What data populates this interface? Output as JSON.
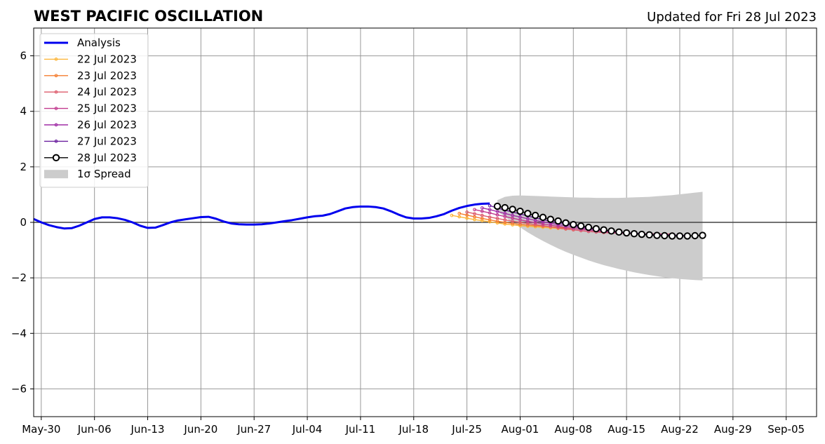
{
  "title": "WEST PACIFIC OSCILLATION",
  "subtitle": "Updated for Fri 28 Jul 2023",
  "chart_data": {
    "type": "line",
    "xlim": [
      "2023-05-29",
      "2023-09-09"
    ],
    "ylim": [
      -7,
      7
    ],
    "grid": true,
    "legend_position": "top-left",
    "x_ticks": [
      {
        "date": "2023-05-30",
        "label": "May-30"
      },
      {
        "date": "2023-06-06",
        "label": "Jun-06"
      },
      {
        "date": "2023-06-13",
        "label": "Jun-13"
      },
      {
        "date": "2023-06-20",
        "label": "Jun-20"
      },
      {
        "date": "2023-06-27",
        "label": "Jun-27"
      },
      {
        "date": "2023-07-04",
        "label": "Jul-04"
      },
      {
        "date": "2023-07-11",
        "label": "Jul-11"
      },
      {
        "date": "2023-07-18",
        "label": "Jul-18"
      },
      {
        "date": "2023-07-25",
        "label": "Jul-25"
      },
      {
        "date": "2023-08-01",
        "label": "Aug-01"
      },
      {
        "date": "2023-08-08",
        "label": "Aug-08"
      },
      {
        "date": "2023-08-15",
        "label": "Aug-15"
      },
      {
        "date": "2023-08-22",
        "label": "Aug-22"
      },
      {
        "date": "2023-08-29",
        "label": "Aug-29"
      },
      {
        "date": "2023-09-05",
        "label": "Sep-05"
      }
    ],
    "y_ticks": [
      {
        "value": 6,
        "label": "6"
      },
      {
        "value": 4,
        "label": "4"
      },
      {
        "value": 2,
        "label": "2"
      },
      {
        "value": 0,
        "label": "0"
      },
      {
        "value": -2,
        "label": "−2"
      },
      {
        "value": -4,
        "label": "−4"
      },
      {
        "value": -6,
        "label": "−6"
      }
    ],
    "series": [
      {
        "name": "Analysis",
        "color": "#0000ee",
        "style": "line",
        "start_date": "2023-05-29",
        "values": [
          0.12,
          0.0,
          -0.1,
          -0.17,
          -0.22,
          -0.21,
          -0.12,
          0.0,
          0.12,
          0.18,
          0.18,
          0.15,
          0.09,
          0.0,
          -0.12,
          -0.2,
          -0.19,
          -0.1,
          0.0,
          0.07,
          0.11,
          0.15,
          0.19,
          0.2,
          0.13,
          0.03,
          -0.04,
          -0.07,
          -0.08,
          -0.08,
          -0.07,
          -0.04,
          0.0,
          0.04,
          0.08,
          0.13,
          0.18,
          0.22,
          0.24,
          0.3,
          0.4,
          0.5,
          0.55,
          0.57,
          0.57,
          0.55,
          0.5,
          0.4,
          0.28,
          0.18,
          0.14,
          0.14,
          0.16,
          0.22,
          0.3,
          0.42,
          0.52,
          0.59,
          0.64,
          0.67,
          0.68
        ]
      },
      {
        "name": "22 Jul 2023",
        "color": "#fcb53a",
        "style": "forecast",
        "start_date": "2023-07-23",
        "values": [
          0.25,
          0.2,
          0.15,
          0.1,
          0.06,
          0.02,
          -0.02,
          -0.06,
          -0.09,
          -0.12,
          -0.14,
          -0.16,
          -0.18,
          -0.2,
          -0.22,
          -0.24,
          -0.26
        ]
      },
      {
        "name": "23 Jul 2023",
        "color": "#f57d2f",
        "style": "forecast",
        "start_date": "2023-07-24",
        "values": [
          0.32,
          0.26,
          0.2,
          0.14,
          0.09,
          0.04,
          0.0,
          -0.04,
          -0.07,
          -0.1,
          -0.12,
          -0.14,
          -0.16,
          -0.18,
          -0.2,
          -0.22
        ]
      },
      {
        "name": "24 Jul 2023",
        "color": "#dd5b6c",
        "style": "forecast",
        "start_date": "2023-07-25",
        "values": [
          0.37,
          0.31,
          0.25,
          0.19,
          0.14,
          0.09,
          0.04,
          0.0,
          -0.04,
          -0.08,
          -0.12,
          -0.16,
          -0.2,
          -0.24,
          -0.27,
          -0.3,
          -0.33,
          -0.35,
          -0.37,
          -0.38,
          -0.39,
          -0.4,
          -0.4,
          -0.41,
          -0.41,
          -0.42,
          -0.42,
          -0.42
        ]
      },
      {
        "name": "25 Jul 2023",
        "color": "#c13a8f",
        "style": "forecast",
        "start_date": "2023-07-26",
        "values": [
          0.46,
          0.4,
          0.34,
          0.27,
          0.21,
          0.15,
          0.09,
          0.04,
          -0.01,
          -0.06,
          -0.1,
          -0.14,
          -0.18,
          -0.22,
          -0.25,
          -0.28,
          -0.31,
          -0.34,
          -0.36,
          -0.38,
          -0.4,
          -0.41,
          -0.42,
          -0.43,
          -0.44,
          -0.44,
          -0.45
        ]
      },
      {
        "name": "26 Jul 2023",
        "color": "#a02da6",
        "style": "forecast",
        "start_date": "2023-07-27",
        "values": [
          0.52,
          0.46,
          0.39,
          0.32,
          0.25,
          0.19,
          0.13,
          0.07,
          0.02,
          -0.03,
          -0.08,
          -0.12,
          -0.16,
          -0.2,
          -0.24,
          -0.27,
          -0.3,
          -0.33,
          -0.36,
          -0.38,
          -0.4,
          -0.42,
          -0.43,
          -0.44,
          -0.45,
          -0.46,
          -0.47
        ]
      },
      {
        "name": "27 Jul 2023",
        "color": "#6a1f9e",
        "style": "forecast",
        "start_date": "2023-07-28",
        "values": [
          0.6,
          0.52,
          0.44,
          0.37,
          0.3,
          0.23,
          0.16,
          0.1,
          0.04,
          -0.01,
          -0.06,
          -0.11,
          -0.16,
          -0.2,
          -0.24,
          -0.28,
          -0.31,
          -0.34,
          -0.37,
          -0.39,
          -0.41,
          -0.43,
          -0.44,
          -0.45,
          -0.46,
          -0.47,
          -0.48
        ]
      },
      {
        "name": "28 Jul 2023",
        "color": "#000000",
        "style": "forecast-main",
        "start_date": "2023-07-29",
        "values": [
          0.58,
          0.53,
          0.47,
          0.4,
          0.32,
          0.25,
          0.18,
          0.11,
          0.05,
          -0.02,
          -0.08,
          -0.13,
          -0.18,
          -0.23,
          -0.27,
          -0.31,
          -0.35,
          -0.38,
          -0.41,
          -0.43,
          -0.45,
          -0.47,
          -0.48,
          -0.49,
          -0.49,
          -0.49,
          -0.48,
          -0.47
        ]
      }
    ],
    "spread": {
      "name": "1σ Spread",
      "color": "#cccccc",
      "start_date": "2023-07-29",
      "upper": [
        0.8,
        0.92,
        0.96,
        0.97,
        0.96,
        0.95,
        0.94,
        0.93,
        0.92,
        0.91,
        0.9,
        0.89,
        0.89,
        0.88,
        0.88,
        0.88,
        0.88,
        0.89,
        0.9,
        0.91,
        0.92,
        0.94,
        0.96,
        0.98,
        1.01,
        1.04,
        1.07,
        1.1
      ],
      "lower": [
        0.4,
        0.2,
        0.0,
        -0.18,
        -0.36,
        -0.52,
        -0.67,
        -0.81,
        -0.94,
        -1.06,
        -1.17,
        -1.27,
        -1.37,
        -1.46,
        -1.54,
        -1.61,
        -1.68,
        -1.74,
        -1.8,
        -1.85,
        -1.9,
        -1.94,
        -1.98,
        -2.01,
        -2.04,
        -2.06,
        -2.08,
        -2.09
      ]
    }
  }
}
